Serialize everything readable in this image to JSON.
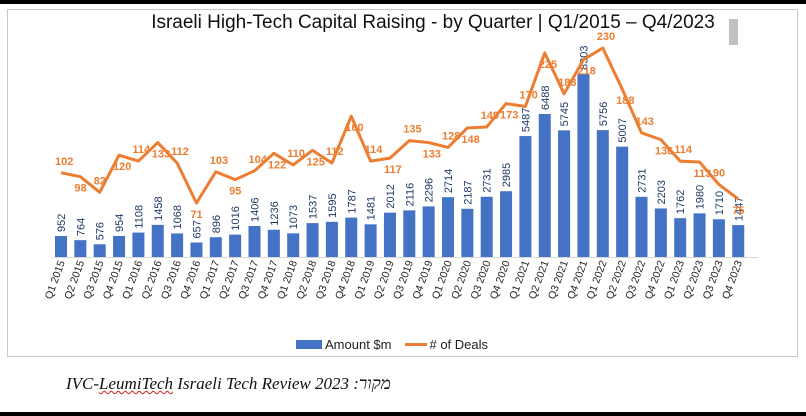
{
  "chart_data": {
    "type": "bar",
    "title": "Israeli High-Tech Capital Raising - by Quarter | Q1/2015 – Q4/2023",
    "xlabel": "",
    "ylabel": "",
    "categories": [
      "Q1 2015",
      "Q2 2015",
      "Q3 2015",
      "Q4 2015",
      "Q1 2016",
      "Q2 2016",
      "Q3 2016",
      "Q4 2016",
      "Q1 2017",
      "Q2 2017",
      "Q3 2017",
      "Q4 2017",
      "Q1 2018",
      "Q2 2018",
      "Q3 2018",
      "Q4 2018",
      "Q1 2019",
      "Q2 2019",
      "Q3 2019",
      "Q4 2019",
      "Q1 2020",
      "Q2 2020",
      "Q3 2020",
      "Q4 2020",
      "Q1 2021",
      "Q2 2021",
      "Q3 2021",
      "Q4 2021",
      "Q1 2022",
      "Q2 2022",
      "Q3 2022",
      "Q4 2022",
      "Q1 2023",
      "Q2 2023",
      "Q3 2023",
      "Q4 2023"
    ],
    "series": [
      {
        "name": "Amount $m",
        "type": "bar",
        "color": "#4472c4",
        "label_color": "#1f3864",
        "values": [
          952,
          764,
          576,
          954,
          1108,
          1458,
          1068,
          657,
          896,
          1016,
          1406,
          1236,
          1073,
          1537,
          1595,
          1787,
          1481,
          2012,
          2116,
          2296,
          2714,
          2187,
          2731,
          2985,
          5487,
          6488,
          5745,
          8303,
          5756,
          5007,
          2731,
          2203,
          1762,
          1980,
          1710,
          1447
        ]
      },
      {
        "name": "# of Deals",
        "type": "line",
        "color": "#ed7d31",
        "values": [
          102,
          98,
          82,
          120,
          114,
          133,
          112,
          71,
          103,
          95,
          104,
          122,
          110,
          125,
          112,
          160,
          114,
          117,
          135,
          133,
          128,
          148,
          149,
          173,
          170,
          225,
          183,
          218,
          230,
          188,
          143,
          136,
          114,
          113,
          90,
          75
        ]
      }
    ],
    "primary_ylim": [
      0,
      8303
    ],
    "secondary_ylim": [
      0,
      230
    ],
    "grid": false,
    "legend": "bottom",
    "data_labels": true
  },
  "source_note": {
    "text": "IVC-LeumiTech Israeli Tech Review 2023 :מקור",
    "prefix": "IVC-",
    "squiggle": "LeumiTech",
    "rest": " Israeli Tech Review 2023 :מקור"
  }
}
